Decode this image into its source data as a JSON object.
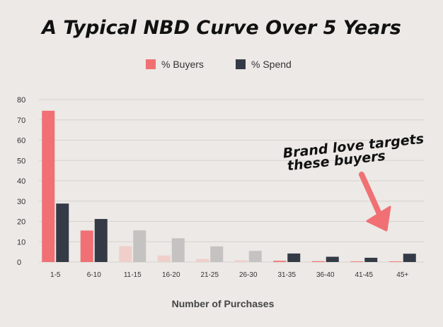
{
  "chart_data": {
    "type": "bar",
    "title": "A Typical NBD Curve Over 5 Years",
    "xlabel": "Number of Purchases",
    "ylabel": "",
    "ylim": [
      0,
      80
    ],
    "yticks": [
      0,
      10,
      20,
      30,
      40,
      50,
      60,
      70,
      80
    ],
    "grid": true,
    "legend_position": "top-center",
    "categories": [
      "1-5",
      "6-10",
      "11-15",
      "16-20",
      "21-25",
      "26-30",
      "31-35",
      "36-40",
      "41-45",
      "45+"
    ],
    "series": [
      {
        "name": "% Buyers",
        "color": "#f07073",
        "faded_color": "#f0cfca",
        "values": [
          74.5,
          15.5,
          7.8,
          3.2,
          1.5,
          0.9,
          0.6,
          0.4,
          0.3,
          0.3
        ]
      },
      {
        "name": "% Spend",
        "color": "#353a47",
        "faded_color": "#c4c3c1",
        "values": [
          28.8,
          21.2,
          15.6,
          11.7,
          7.7,
          5.5,
          4.2,
          2.6,
          2.1,
          4.1
        ]
      }
    ],
    "faded_categories": [
      "11-15",
      "16-20",
      "21-25",
      "26-30"
    ],
    "annotation": {
      "line1": "Brand love targets",
      "line2": "these buyers",
      "arrow_color": "#f07073",
      "points_to": "41-45"
    }
  }
}
